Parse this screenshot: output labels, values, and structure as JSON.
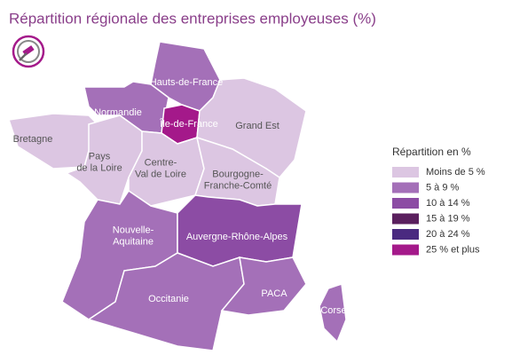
{
  "title": "Répartition régionale des entreprises employeuses (%)",
  "regions": [
    {
      "lines": [
        "Hauts-de-France"
      ],
      "color": "#a470b8"
    },
    {
      "lines": [
        "Normandie"
      ],
      "color": "#a470b8"
    },
    {
      "lines": [
        "Île-de-France"
      ],
      "color": "#a4198a"
    },
    {
      "lines": [
        "Grand Est"
      ],
      "color": "#dcc6e2"
    },
    {
      "lines": [
        "Bretagne"
      ],
      "color": "#dcc6e2"
    },
    {
      "lines": [
        "Pays",
        "de la Loire"
      ],
      "color": "#dcc6e2"
    },
    {
      "lines": [
        "Centre-",
        "Val de Loire"
      ],
      "color": "#dcc6e2"
    },
    {
      "lines": [
        "Bourgogne-",
        "Franche-Comté"
      ],
      "color": "#dcc6e2"
    },
    {
      "lines": [
        "Nouvelle-",
        "Aquitaine"
      ],
      "color": "#a470b8"
    },
    {
      "lines": [
        "Auvergne-Rhône-Alpes"
      ],
      "color": "#8c4ca4"
    },
    {
      "lines": [
        "Occitanie"
      ],
      "color": "#a470b8"
    },
    {
      "lines": [
        "PACA"
      ],
      "color": "#a470b8"
    },
    {
      "lines": [
        "Corse"
      ],
      "color": "#a470b8"
    }
  ],
  "legend": {
    "title": "Répartition en %",
    "items": [
      {
        "label": "Moins de 5 %",
        "color": "#dcc6e2"
      },
      {
        "label": "5 à 9 %",
        "color": "#a470b8"
      },
      {
        "label": "10 à 14 %",
        "color": "#8c4ca4"
      },
      {
        "label": "15 à 19 %",
        "color": "#5a1f5e"
      },
      {
        "label": "20 à 24 %",
        "color": "#4a2a80"
      },
      {
        "label": "25 % et plus",
        "color": "#a4198a"
      }
    ]
  }
}
